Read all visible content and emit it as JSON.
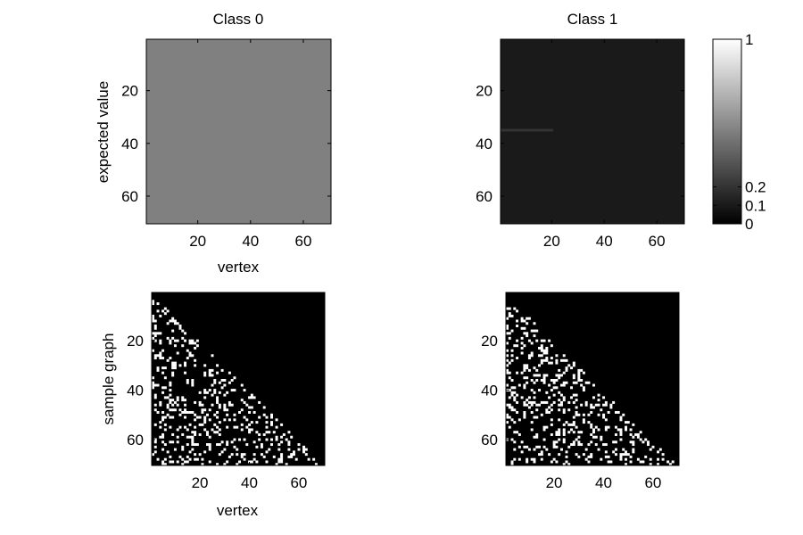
{
  "colors": {
    "background": "#ffffff",
    "on_cell": "#ffffff",
    "off_cell": "#000000"
  },
  "chart_data": [
    {
      "type": "heatmap",
      "panel": "top-left",
      "title": "Class 0",
      "xlabel": "vertex",
      "ylabel": "expected value",
      "xlim": [
        0.5,
        70.5
      ],
      "ylim": [
        0.5,
        70.5
      ],
      "xticks": [
        20,
        40,
        60
      ],
      "yticks": [
        20,
        40,
        60
      ],
      "uniform_value": 0.5,
      "colormap": "gray",
      "clim": [
        0,
        1
      ]
    },
    {
      "type": "heatmap",
      "panel": "top-right",
      "title": "Class 1",
      "xlabel": "",
      "ylabel": "",
      "xlim": [
        0.5,
        70.5
      ],
      "ylim": [
        0.5,
        70.5
      ],
      "xticks": [
        20,
        40,
        60
      ],
      "yticks": [
        20,
        40,
        60
      ],
      "uniform_value": 0.1,
      "signal": {
        "row": 35,
        "col_from": 1,
        "col_to": 20,
        "value": 0.2
      },
      "colormap": "gray",
      "clim": [
        0,
        1
      ]
    },
    {
      "type": "heatmap",
      "panel": "bottom-left",
      "title": "",
      "xlabel": "vertex",
      "ylabel": "sample graph",
      "xlim": [
        0.5,
        70.5
      ],
      "ylim": [
        0.5,
        70.5
      ],
      "xticks": [
        20,
        40,
        60
      ],
      "yticks": [
        20,
        40,
        60
      ],
      "structure": "binary lower-triangular adjacency sample",
      "edge_probability": 0.2,
      "seed": 11
    },
    {
      "type": "heatmap",
      "panel": "bottom-right",
      "title": "",
      "xlabel": "",
      "ylabel": "",
      "xlim": [
        0.5,
        70.5
      ],
      "ylim": [
        0.5,
        70.5
      ],
      "xticks": [
        20,
        40,
        60
      ],
      "yticks": [
        20,
        40,
        60
      ],
      "structure": "binary lower-triangular adjacency sample",
      "edge_probability": 0.2,
      "seed": 29
    }
  ],
  "colorbar": {
    "colormap": "gray",
    "clim": [
      0,
      1
    ],
    "ticks": [
      {
        "value": 0,
        "label": "0"
      },
      {
        "value": 0.1,
        "label": "0.1"
      },
      {
        "value": 0.2,
        "label": "0.2"
      },
      {
        "value": 1,
        "label": "1"
      }
    ]
  }
}
